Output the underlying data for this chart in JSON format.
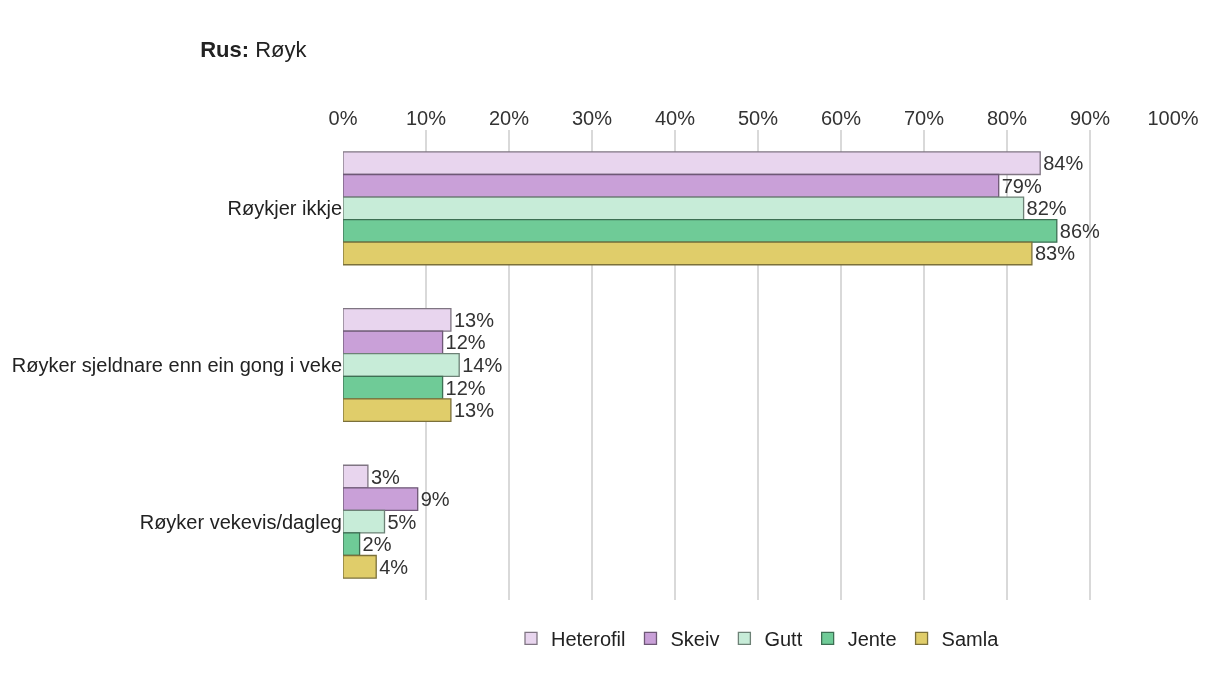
{
  "chart_data": {
    "type": "bar",
    "orientation": "horizontal",
    "title": "Rus: Røyk",
    "categories": [
      "Røykjer ikkje",
      "Røyker sjeldnare enn ein gong i veke",
      "Røyker vekevis/dagleg"
    ],
    "series": [
      {
        "name": "Heterofil",
        "color": "#e8d5ee",
        "values": [
          84,
          13,
          3
        ],
        "value_labels": [
          "84%",
          "13%",
          "3%"
        ]
      },
      {
        "name": "Skeiv",
        "color": "#c9a0d8",
        "values": [
          79,
          12,
          9
        ],
        "value_labels": [
          "79%",
          "12%",
          "9%"
        ]
      },
      {
        "name": "Gutt",
        "color": "#c7ecd8",
        "values": [
          82,
          14,
          5
        ],
        "value_labels": [
          "82%",
          "14%",
          "5%"
        ]
      },
      {
        "name": "Jente",
        "color": "#6fcb97",
        "values": [
          86,
          12,
          2
        ],
        "value_labels": [
          "86%",
          "12%",
          "2%"
        ]
      },
      {
        "name": "Samla",
        "color": "#e0cd6a",
        "values": [
          83,
          13,
          4
        ],
        "value_labels": [
          "83%",
          "13%",
          "4%"
        ]
      }
    ],
    "xlim": [
      0,
      100
    ],
    "xticks": [
      {
        "value": 0,
        "label": "0%"
      },
      {
        "value": 10,
        "label": "10%"
      },
      {
        "value": 20,
        "label": "20%"
      },
      {
        "value": 30,
        "label": "30%"
      },
      {
        "value": 40,
        "label": "40%"
      },
      {
        "value": 50,
        "label": "50%"
      },
      {
        "value": 60,
        "label": "60%"
      },
      {
        "value": 70,
        "label": "70%"
      },
      {
        "value": 80,
        "label": "80%"
      },
      {
        "value": 90,
        "label": "90%"
      },
      {
        "value": 100,
        "label": "100%"
      }
    ],
    "grid": "x",
    "legend": "bottom"
  }
}
